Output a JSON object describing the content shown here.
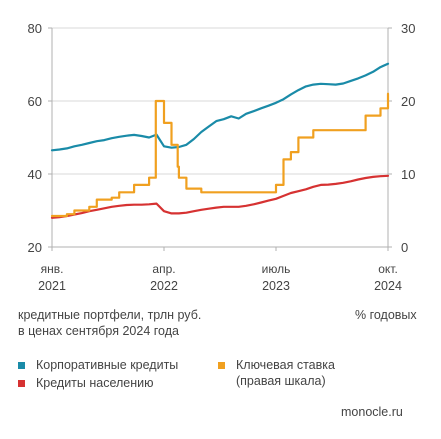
{
  "caption": {
    "left_line1": "кредитные портфели, трлн руб.",
    "left_line2": "в ценах сентября 2024 года",
    "right": "% годовых"
  },
  "legend": {
    "corporate": "Корпоративные кредиты",
    "household": "Кредиты населению",
    "key_rate_line1": "Ключевая ставка",
    "key_rate_line2": "(правая шкала)"
  },
  "source": "monocle.ru",
  "colors": {
    "corporate": "#1a8ba8",
    "household": "#d63232",
    "key_rate": "#f0a020",
    "axis": "#b0b0b0",
    "grid": "#d8d8d8",
    "text": "#444444"
  },
  "chart_data": {
    "type": "line",
    "title": "",
    "xlabel": "",
    "ylabel": "",
    "x_range": [
      "2021-01",
      "2024-10"
    ],
    "x_ticks": [
      {
        "date": "2021-01",
        "line1": "янв.",
        "line2": "2021"
      },
      {
        "date": "2022-04",
        "line1": "апр.",
        "line2": "2022"
      },
      {
        "date": "2023-07",
        "line1": "июль",
        "line2": "2023"
      },
      {
        "date": "2024-10",
        "line1": "окт.",
        "line2": "2024"
      }
    ],
    "y_left": {
      "range": [
        20,
        80
      ],
      "ticks": [
        "20",
        "40",
        "60",
        "80"
      ],
      "label": "кредитные портфели, трлн руб."
    },
    "y_right": {
      "range": [
        0,
        30
      ],
      "ticks": [
        "0",
        "10",
        "20",
        "30"
      ],
      "label": "% годовых"
    },
    "grid": "horizontal",
    "legend_position": "bottom",
    "series": [
      {
        "name": "Корпоративные кредиты",
        "axis": "left",
        "color": "#1a8ba8",
        "step": false,
        "points": [
          [
            "2021-01",
            46.5
          ],
          [
            "2021-02",
            46.7
          ],
          [
            "2021-03",
            47.0
          ],
          [
            "2021-04",
            47.6
          ],
          [
            "2021-05",
            48.0
          ],
          [
            "2021-06",
            48.5
          ],
          [
            "2021-07",
            49.0
          ],
          [
            "2021-08",
            49.3
          ],
          [
            "2021-09",
            49.8
          ],
          [
            "2021-10",
            50.2
          ],
          [
            "2021-11",
            50.5
          ],
          [
            "2021-12",
            50.7
          ],
          [
            "2022-01",
            50.4
          ],
          [
            "2022-02",
            50.0
          ],
          [
            "2022-03",
            50.8
          ],
          [
            "2022-04",
            47.6
          ],
          [
            "2022-05",
            47.2
          ],
          [
            "2022-06",
            47.4
          ],
          [
            "2022-07",
            48.0
          ],
          [
            "2022-08",
            49.6
          ],
          [
            "2022-09",
            51.5
          ],
          [
            "2022-10",
            53.0
          ],
          [
            "2022-11",
            54.5
          ],
          [
            "2022-12",
            55.0
          ],
          [
            "2023-01",
            55.8
          ],
          [
            "2023-02",
            55.2
          ],
          [
            "2023-03",
            56.5
          ],
          [
            "2023-04",
            57.2
          ],
          [
            "2023-05",
            58.0
          ],
          [
            "2023-06",
            58.7
          ],
          [
            "2023-07",
            59.5
          ],
          [
            "2023-08",
            60.5
          ],
          [
            "2023-09",
            61.8
          ],
          [
            "2023-10",
            63.0
          ],
          [
            "2023-11",
            64.0
          ],
          [
            "2023-12",
            64.5
          ],
          [
            "2024-01",
            64.7
          ],
          [
            "2024-02",
            64.6
          ],
          [
            "2024-03",
            64.5
          ],
          [
            "2024-04",
            64.8
          ],
          [
            "2024-05",
            65.5
          ],
          [
            "2024-06",
            66.2
          ],
          [
            "2024-07",
            67.0
          ],
          [
            "2024-08",
            68.0
          ],
          [
            "2024-09",
            69.3
          ],
          [
            "2024-10",
            70.2
          ]
        ]
      },
      {
        "name": "Кредиты населению",
        "axis": "left",
        "color": "#d63232",
        "step": false,
        "points": [
          [
            "2021-01",
            28.0
          ],
          [
            "2021-02",
            28.2
          ],
          [
            "2021-03",
            28.5
          ],
          [
            "2021-04",
            28.9
          ],
          [
            "2021-05",
            29.3
          ],
          [
            "2021-06",
            29.8
          ],
          [
            "2021-07",
            30.2
          ],
          [
            "2021-08",
            30.6
          ],
          [
            "2021-09",
            31.0
          ],
          [
            "2021-10",
            31.3
          ],
          [
            "2021-11",
            31.5
          ],
          [
            "2021-12",
            31.6
          ],
          [
            "2022-01",
            31.6
          ],
          [
            "2022-02",
            31.7
          ],
          [
            "2022-03",
            31.9
          ],
          [
            "2022-04",
            29.8
          ],
          [
            "2022-05",
            29.2
          ],
          [
            "2022-06",
            29.2
          ],
          [
            "2022-07",
            29.4
          ],
          [
            "2022-08",
            29.8
          ],
          [
            "2022-09",
            30.2
          ],
          [
            "2022-10",
            30.5
          ],
          [
            "2022-11",
            30.8
          ],
          [
            "2022-12",
            31.0
          ],
          [
            "2023-01",
            31.0
          ],
          [
            "2023-02",
            31.0
          ],
          [
            "2023-03",
            31.3
          ],
          [
            "2023-04",
            31.7
          ],
          [
            "2023-05",
            32.2
          ],
          [
            "2023-06",
            32.7
          ],
          [
            "2023-07",
            33.2
          ],
          [
            "2023-08",
            34.0
          ],
          [
            "2023-09",
            34.8
          ],
          [
            "2023-10",
            35.3
          ],
          [
            "2023-11",
            35.8
          ],
          [
            "2023-12",
            36.5
          ],
          [
            "2024-01",
            37.0
          ],
          [
            "2024-02",
            37.1
          ],
          [
            "2024-03",
            37.3
          ],
          [
            "2024-04",
            37.6
          ],
          [
            "2024-05",
            38.0
          ],
          [
            "2024-06",
            38.5
          ],
          [
            "2024-07",
            38.9
          ],
          [
            "2024-08",
            39.2
          ],
          [
            "2024-09",
            39.4
          ],
          [
            "2024-10",
            39.5
          ]
        ]
      },
      {
        "name": "Ключевая ставка",
        "axis": "right",
        "color": "#f0a020",
        "step": true,
        "points": [
          [
            "2021-01",
            4.25
          ],
          [
            "2021-03",
            4.5
          ],
          [
            "2021-04",
            5.0
          ],
          [
            "2021-06",
            5.5
          ],
          [
            "2021-07",
            6.5
          ],
          [
            "2021-09",
            6.75
          ],
          [
            "2021-10",
            7.5
          ],
          [
            "2021-12",
            8.5
          ],
          [
            "2022-02",
            9.5
          ],
          [
            "2022-02-28",
            20.0
          ],
          [
            "2022-04",
            17.0
          ],
          [
            "2022-05",
            14.0
          ],
          [
            "2022-05-26",
            11.0
          ],
          [
            "2022-06",
            9.5
          ],
          [
            "2022-07",
            8.0
          ],
          [
            "2022-09",
            7.5
          ],
          [
            "2023-07",
            8.5
          ],
          [
            "2023-08",
            12.0
          ],
          [
            "2023-09",
            13.0
          ],
          [
            "2023-10",
            15.0
          ],
          [
            "2023-12",
            16.0
          ],
          [
            "2024-07",
            18.0
          ],
          [
            "2024-09",
            19.0
          ],
          [
            "2024-10",
            21.0
          ]
        ]
      }
    ]
  }
}
